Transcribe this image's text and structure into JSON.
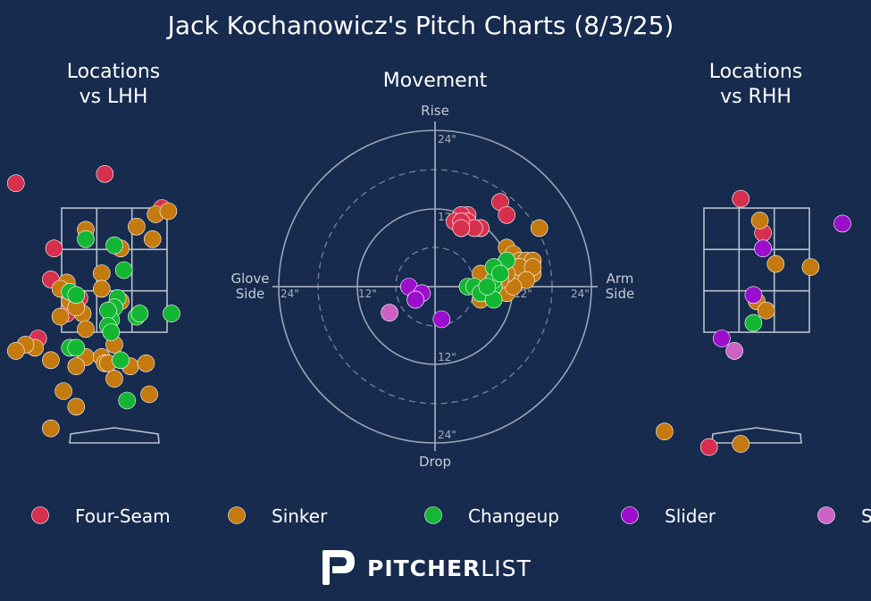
{
  "title": "Jack Kochanowicz's Pitch Charts (8/3/25)",
  "panels": {
    "left_title_line1": "Locations",
    "left_title_line2": "vs LHH",
    "center_title": "Movement",
    "right_title_line1": "Locations",
    "right_title_line2": "vs RHH"
  },
  "movement_axes": {
    "top": "Rise",
    "bottom": "Drop",
    "left_line1": "Glove",
    "left_line2": "Side",
    "right_line1": "Arm",
    "right_line2": "Side",
    "ring_labels": [
      "24\"",
      "12\"",
      "12\"",
      "24\"",
      "24\"",
      "12\"",
      "12\"",
      "24\""
    ]
  },
  "brand": {
    "bold": "PITCHER",
    "light": "LIST"
  },
  "pitch_colors": {
    "Four-Seam": "#d7304f",
    "Sinker": "#c47a0e",
    "Changeup": "#14b733",
    "Slider": "#9b0fcc",
    "Sweeper": "#cc62c4"
  },
  "chart_data": [
    {
      "type": "scatter",
      "name": "locations-vs-lhh",
      "title": "Locations vs LHH",
      "series": [
        {
          "name": "Four-Seam",
          "points": [
            [
              -1.55,
              3.9
            ],
            [
              0.75,
              3.5
            ],
            [
              -0.15,
              4.05
            ],
            [
              -0.75,
              1.8
            ],
            [
              -1.0,
              2.35
            ],
            [
              -0.95,
              2.85
            ],
            [
              -1.2,
              1.4
            ],
            [
              -0.55,
              2.05
            ]
          ]
        },
        {
          "name": "Sinker",
          "points": [
            [
              0.65,
              3.4
            ],
            [
              0.85,
              3.45
            ],
            [
              -0.45,
              3.15
            ],
            [
              0.1,
              2.0
            ],
            [
              0.35,
              3.2
            ],
            [
              0.6,
              3.0
            ],
            [
              0.1,
              2.85
            ],
            [
              -0.2,
              2.45
            ],
            [
              -0.2,
              2.2
            ],
            [
              -0.75,
              2.3
            ],
            [
              -0.85,
              2.2
            ],
            [
              -0.85,
              1.75
            ],
            [
              -0.5,
              1.8
            ],
            [
              -0.7,
              2.0
            ],
            [
              -0.6,
              1.9
            ],
            [
              -0.45,
              1.55
            ],
            [
              -0.45,
              1.1
            ],
            [
              -0.6,
              0.95
            ],
            [
              -1.0,
              1.05
            ],
            [
              -1.25,
              1.25
            ],
            [
              -1.4,
              1.3
            ],
            [
              -1.55,
              1.2
            ],
            [
              -1.85,
              1.25
            ],
            [
              0.0,
              1.3
            ],
            [
              -0.2,
              1.1
            ],
            [
              -0.15,
              1.0
            ],
            [
              -0.1,
              1.0
            ],
            [
              0.0,
              0.75
            ],
            [
              0.25,
              0.95
            ],
            [
              0.5,
              1.0
            ],
            [
              0.55,
              0.5
            ],
            [
              -0.8,
              0.55
            ],
            [
              -0.6,
              0.3
            ],
            [
              -1.0,
              -0.05
            ]
          ]
        },
        {
          "name": "Changeup",
          "points": [
            [
              -0.45,
              3.0
            ],
            [
              0.0,
              2.9
            ],
            [
              0.15,
              2.5
            ],
            [
              -0.7,
              2.15
            ],
            [
              -0.6,
              2.1
            ],
            [
              0.05,
              2.05
            ],
            [
              0.0,
              1.9
            ],
            [
              -0.05,
              1.7
            ],
            [
              0.35,
              1.75
            ],
            [
              0.4,
              1.8
            ],
            [
              -0.1,
              1.85
            ],
            [
              -0.1,
              1.6
            ],
            [
              -0.7,
              1.25
            ],
            [
              -0.05,
              1.5
            ],
            [
              0.1,
              1.05
            ],
            [
              0.2,
              0.4
            ],
            [
              0.9,
              1.8
            ],
            [
              -0.6,
              1.25
            ]
          ]
        }
      ]
    },
    {
      "type": "scatter",
      "name": "movement",
      "title": "Movement",
      "units": "inches",
      "series": [
        {
          "name": "Four-Seam",
          "points": [
            [
              7,
              9
            ],
            [
              5,
              11
            ],
            [
              4,
              11
            ],
            [
              5,
              10
            ],
            [
              7,
              9
            ],
            [
              6,
              9
            ],
            [
              4,
              9
            ],
            [
              3,
              10
            ],
            [
              4,
              10
            ],
            [
              4,
              9
            ],
            [
              10,
              13
            ],
            [
              11,
              11
            ]
          ]
        },
        {
          "name": "Sinker",
          "points": [
            [
              16,
              9
            ],
            [
              11,
              6
            ],
            [
              12,
              5
            ],
            [
              13,
              4
            ],
            [
              14,
              4
            ],
            [
              15,
              4
            ],
            [
              11,
              3
            ],
            [
              12,
              3
            ],
            [
              13,
              2
            ],
            [
              14,
              2
            ],
            [
              15,
              2
            ],
            [
              11,
              2
            ],
            [
              10,
              1
            ],
            [
              9,
              1
            ],
            [
              12,
              1
            ],
            [
              13,
              1
            ],
            [
              10,
              0
            ],
            [
              9,
              0
            ],
            [
              7,
              -2
            ],
            [
              8,
              -1
            ],
            [
              11,
              0
            ],
            [
              11,
              -1
            ],
            [
              13,
              1
            ],
            [
              12,
              2
            ],
            [
              13,
              3
            ],
            [
              15,
              3
            ],
            [
              14,
              1
            ],
            [
              12,
              0
            ],
            [
              11,
              2
            ],
            [
              10,
              1
            ],
            [
              9,
              0
            ],
            [
              8,
              1
            ],
            [
              7,
              2
            ],
            [
              8,
              0
            ]
          ]
        },
        {
          "name": "Changeup",
          "points": [
            [
              5,
              0
            ],
            [
              6,
              0
            ],
            [
              8,
              0
            ],
            [
              9,
              0
            ],
            [
              9,
              1
            ],
            [
              10,
              3
            ],
            [
              11,
              4
            ],
            [
              9,
              3
            ],
            [
              10,
              2
            ],
            [
              7,
              -1
            ],
            [
              9,
              -2
            ],
            [
              8,
              0
            ]
          ]
        },
        {
          "name": "Slider",
          "points": [
            [
              -4,
              0
            ],
            [
              -2,
              -1
            ],
            [
              -3,
              -2
            ],
            [
              -3,
              -2
            ],
            [
              1,
              -5
            ]
          ]
        },
        {
          "name": "Sweeper",
          "points": [
            [
              -7,
              -4
            ]
          ]
        }
      ]
    },
    {
      "type": "scatter",
      "name": "locations-vs-rhh",
      "title": "Locations vs RHH",
      "series": [
        {
          "name": "Four-Seam",
          "points": [
            [
              -0.25,
              3.65
            ],
            [
              0.1,
              3.1
            ],
            [
              -0.75,
              -0.35
            ]
          ]
        },
        {
          "name": "Sinker",
          "points": [
            [
              0.05,
              3.3
            ],
            [
              0.3,
              2.6
            ],
            [
              0.85,
              2.55
            ],
            [
              0.0,
              2.0
            ],
            [
              0.15,
              1.85
            ],
            [
              -1.45,
              -0.1
            ],
            [
              -0.25,
              -0.3
            ]
          ]
        },
        {
          "name": "Changeup",
          "points": [
            [
              -0.05,
              1.65
            ]
          ]
        },
        {
          "name": "Slider",
          "points": [
            [
              0.1,
              2.85
            ],
            [
              -0.05,
              2.1
            ],
            [
              -0.55,
              1.4
            ],
            [
              1.35,
              3.25
            ]
          ]
        },
        {
          "name": "Sweeper",
          "points": [
            [
              -0.35,
              1.2
            ]
          ]
        }
      ]
    }
  ]
}
